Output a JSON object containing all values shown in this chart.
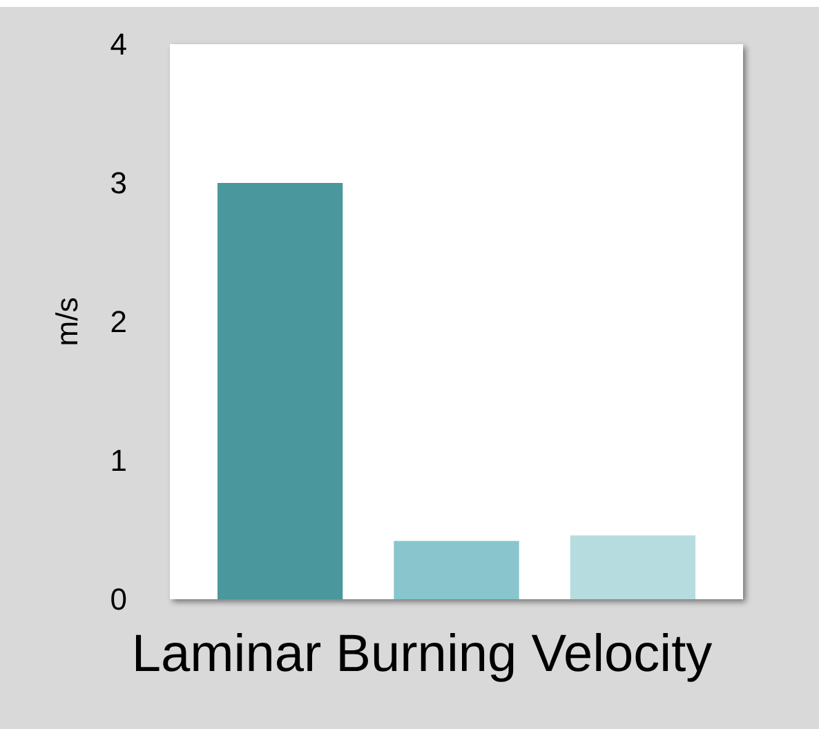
{
  "chart_data": {
    "type": "bar",
    "xlabel": "Laminar Burning Velocity",
    "ylabel": "m/s",
    "categories": [
      null,
      null,
      null
    ],
    "values": [
      3.0,
      0.42,
      0.46
    ],
    "colors": [
      "#4a979e",
      "#89c5cc",
      "#b7dcdf"
    ],
    "ylim": [
      0,
      4
    ],
    "yticks": [
      0,
      1,
      2,
      3,
      4
    ],
    "grid": false
  }
}
